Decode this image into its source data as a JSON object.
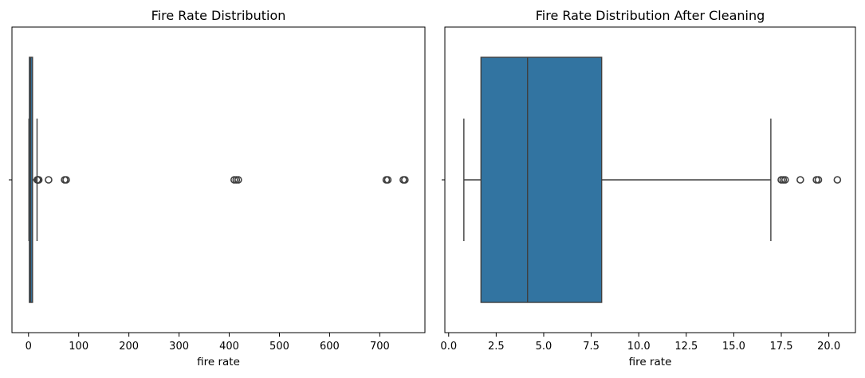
{
  "chart_data": [
    {
      "type": "boxplot",
      "title": "Fire Rate Distribution",
      "xlabel": "fire rate",
      "ylabel": "",
      "orientation": "horizontal",
      "xlim": [
        -33,
        790
      ],
      "xticks": [
        0,
        100,
        200,
        300,
        400,
        500,
        600,
        700
      ],
      "box": {
        "whisker_low": 0.8,
        "q1": 1.7,
        "median": 4.2,
        "q3": 8.0,
        "whisker_high": 17.0
      },
      "fliers": [
        17.5,
        17.8,
        18.5,
        19.4,
        20.4,
        40,
        72,
        75,
        410,
        414,
        418,
        713,
        716,
        747,
        750
      ],
      "box_color": "#3274a1"
    },
    {
      "type": "boxplot",
      "title": "Fire Rate Distribution After Cleaning",
      "xlabel": "fire rate",
      "ylabel": "",
      "orientation": "horizontal",
      "xlim": [
        -0.2,
        21.4
      ],
      "xticks": [
        0.0,
        2.5,
        5.0,
        7.5,
        10.0,
        12.5,
        15.0,
        17.5,
        20.0
      ],
      "box": {
        "whisker_low": 0.8,
        "q1": 1.7,
        "median": 4.15,
        "q3": 8.05,
        "whisker_high": 16.95
      },
      "fliers": [
        17.5,
        17.6,
        17.7,
        18.5,
        19.35,
        19.45,
        20.45
      ],
      "box_color": "#3274a1"
    }
  ]
}
